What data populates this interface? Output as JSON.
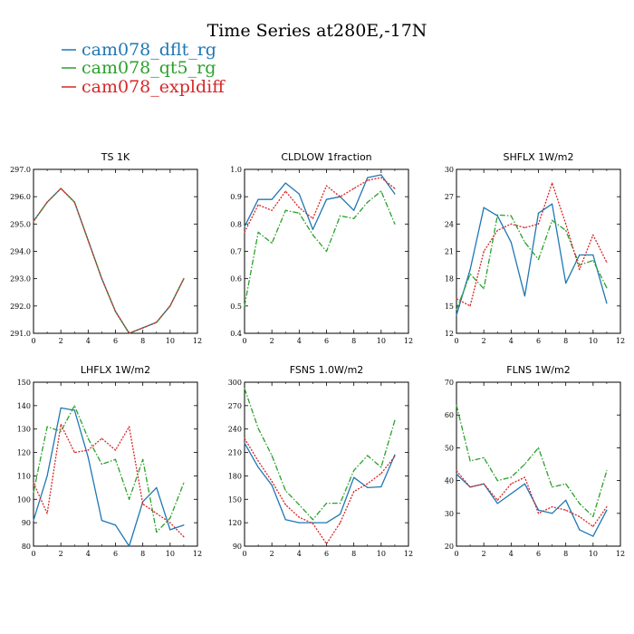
{
  "figure": {
    "title": "Time Series at280E,-17N",
    "legend": [
      {
        "name": "cam078_dflt_rg",
        "color": "#1f77b4",
        "dash": "solid"
      },
      {
        "name": "cam078_qt5_rg",
        "color": "#2ca02c",
        "dash": "dashdot"
      },
      {
        "name": "cam078_expldiff",
        "color": "#d62728",
        "dash": "dotted"
      }
    ]
  },
  "chart_data": [
    {
      "type": "line",
      "title": "TS   1K",
      "x": [
        0,
        1,
        2,
        3,
        4,
        5,
        6,
        7,
        8,
        9,
        10,
        11
      ],
      "xlim": [
        0,
        12
      ],
      "xticks": [
        0,
        2,
        4,
        6,
        8,
        10,
        12
      ],
      "ylim": [
        291,
        297
      ],
      "yticks": [
        291,
        292,
        293,
        294,
        295,
        296,
        297
      ],
      "ytick_labels": [
        "291.0",
        "292.0",
        "293.0",
        "294.0",
        "295.0",
        "296.0",
        "297.0"
      ],
      "series": [
        {
          "name": "cam078_dflt_rg",
          "values": [
            295.1,
            295.8,
            296.3,
            295.8,
            294.4,
            293.0,
            291.8,
            291.0,
            291.2,
            291.4,
            292.0,
            293.0
          ]
        },
        {
          "name": "cam078_qt5_rg",
          "values": [
            295.1,
            295.8,
            296.3,
            295.8,
            294.4,
            293.0,
            291.8,
            291.0,
            291.2,
            291.4,
            292.0,
            293.0
          ]
        },
        {
          "name": "cam078_expldiff",
          "values": [
            295.1,
            295.8,
            296.3,
            295.8,
            294.4,
            293.0,
            291.8,
            291.0,
            291.2,
            291.4,
            292.0,
            293.0
          ]
        }
      ]
    },
    {
      "type": "line",
      "title": "CLDLOW   1fraction",
      "x": [
        0,
        1,
        2,
        3,
        4,
        5,
        6,
        7,
        8,
        9,
        10,
        11
      ],
      "xlim": [
        0,
        12
      ],
      "xticks": [
        0,
        2,
        4,
        6,
        8,
        10,
        12
      ],
      "ylim": [
        0.4,
        1.0
      ],
      "yticks": [
        0.4,
        0.5,
        0.6,
        0.7,
        0.8,
        0.9,
        1.0
      ],
      "ytick_labels": [
        "0.4",
        "0.5",
        "0.6",
        "0.7",
        "0.8",
        "0.9",
        "1.0"
      ],
      "series": [
        {
          "name": "cam078_dflt_rg",
          "values": [
            0.79,
            0.89,
            0.89,
            0.95,
            0.91,
            0.78,
            0.89,
            0.9,
            0.85,
            0.97,
            0.98,
            0.91
          ]
        },
        {
          "name": "cam078_qt5_rg",
          "values": [
            0.5,
            0.77,
            0.73,
            0.85,
            0.84,
            0.76,
            0.7,
            0.83,
            0.82,
            0.88,
            0.92,
            0.8
          ]
        },
        {
          "name": "cam078_expldiff",
          "values": [
            0.77,
            0.87,
            0.85,
            0.92,
            0.86,
            0.82,
            0.94,
            0.9,
            0.93,
            0.96,
            0.97,
            0.93
          ]
        }
      ]
    },
    {
      "type": "line",
      "title": "SHFLX   1W/m2",
      "x": [
        0,
        1,
        2,
        3,
        4,
        5,
        6,
        7,
        8,
        9,
        10,
        11
      ],
      "xlim": [
        0,
        12
      ],
      "xticks": [
        0,
        2,
        4,
        6,
        8,
        10,
        12
      ],
      "ylim": [
        12,
        30
      ],
      "yticks": [
        12,
        15,
        18,
        21,
        24,
        27,
        30
      ],
      "ytick_labels": [
        "12",
        "15",
        "18",
        "21",
        "24",
        "27",
        "30"
      ],
      "series": [
        {
          "name": "cam078_dflt_rg",
          "values": [
            14.0,
            19.0,
            25.8,
            24.9,
            22.0,
            16.1,
            25.2,
            26.2,
            17.5,
            20.6,
            20.6,
            15.3
          ]
        },
        {
          "name": "cam078_qt5_rg",
          "values": [
            14.6,
            18.5,
            16.9,
            25.0,
            24.9,
            22.0,
            20.1,
            24.4,
            23.3,
            19.5,
            20.0,
            17.0
          ]
        },
        {
          "name": "cam078_expldiff",
          "values": [
            15.8,
            15.0,
            21.0,
            23.3,
            24.0,
            23.6,
            24.0,
            28.5,
            24.0,
            19.0,
            22.8,
            19.8
          ]
        }
      ]
    },
    {
      "type": "line",
      "title": "LHFLX   1W/m2",
      "x": [
        0,
        1,
        2,
        3,
        4,
        5,
        6,
        7,
        8,
        9,
        10,
        11
      ],
      "xlim": [
        0,
        12
      ],
      "xticks": [
        0,
        2,
        4,
        6,
        8,
        10,
        12
      ],
      "ylim": [
        80,
        150
      ],
      "yticks": [
        80,
        90,
        100,
        110,
        120,
        130,
        140,
        150
      ],
      "ytick_labels": [
        "80",
        "90",
        "100",
        "110",
        "120",
        "130",
        "140",
        "150"
      ],
      "series": [
        {
          "name": "cam078_dflt_rg",
          "values": [
            91,
            110,
            139,
            138,
            118,
            91,
            89,
            80,
            99,
            105,
            87,
            89
          ]
        },
        {
          "name": "cam078_qt5_rg",
          "values": [
            103,
            131,
            129,
            140,
            126,
            115,
            117,
            100,
            117,
            86,
            92,
            107
          ]
        },
        {
          "name": "cam078_expldiff",
          "values": [
            107,
            94,
            132,
            120,
            121,
            126,
            121,
            131,
            98,
            94,
            90,
            84
          ]
        }
      ]
    },
    {
      "type": "line",
      "title": "FSNS   1.0W/m2",
      "x": [
        0,
        1,
        2,
        3,
        4,
        5,
        6,
        7,
        8,
        9,
        10,
        11
      ],
      "xlim": [
        0,
        12
      ],
      "xticks": [
        0,
        2,
        4,
        6,
        8,
        10,
        12
      ],
      "ylim": [
        90,
        300
      ],
      "yticks": [
        90,
        120,
        150,
        180,
        210,
        240,
        270,
        300
      ],
      "ytick_labels": [
        "90",
        "120",
        "150",
        "180",
        "210",
        "240",
        "270",
        "300"
      ],
      "series": [
        {
          "name": "cam078_dflt_rg",
          "values": [
            222,
            191,
            168,
            124,
            120,
            120,
            120,
            131,
            178,
            165,
            166,
            207
          ]
        },
        {
          "name": "cam078_qt5_rg",
          "values": [
            292,
            241,
            206,
            161,
            143,
            124,
            145,
            145,
            187,
            206,
            191,
            251
          ]
        },
        {
          "name": "cam078_expldiff",
          "values": [
            228,
            199,
            173,
            143,
            127,
            119,
            93,
            120,
            160,
            170,
            183,
            205
          ]
        }
      ]
    },
    {
      "type": "line",
      "title": "FLNS   1W/m2",
      "x": [
        0,
        1,
        2,
        3,
        4,
        5,
        6,
        7,
        8,
        9,
        10,
        11
      ],
      "xlim": [
        0,
        12
      ],
      "xticks": [
        0,
        2,
        4,
        6,
        8,
        10,
        12
      ],
      "ylim": [
        20,
        70
      ],
      "yticks": [
        20,
        30,
        40,
        50,
        60,
        70
      ],
      "ytick_labels": [
        "20",
        "30",
        "40",
        "50",
        "60",
        "70"
      ],
      "series": [
        {
          "name": "cam078_dflt_rg",
          "values": [
            42,
            38,
            39,
            33,
            36,
            39,
            31,
            30,
            34,
            25,
            23,
            31
          ]
        },
        {
          "name": "cam078_qt5_rg",
          "values": [
            63,
            46,
            47,
            40,
            41,
            45,
            50,
            38,
            39,
            33,
            29,
            43
          ]
        },
        {
          "name": "cam078_expldiff",
          "values": [
            43,
            38,
            39,
            34,
            39,
            41,
            30,
            32,
            31,
            29,
            26,
            32
          ]
        }
      ]
    }
  ]
}
